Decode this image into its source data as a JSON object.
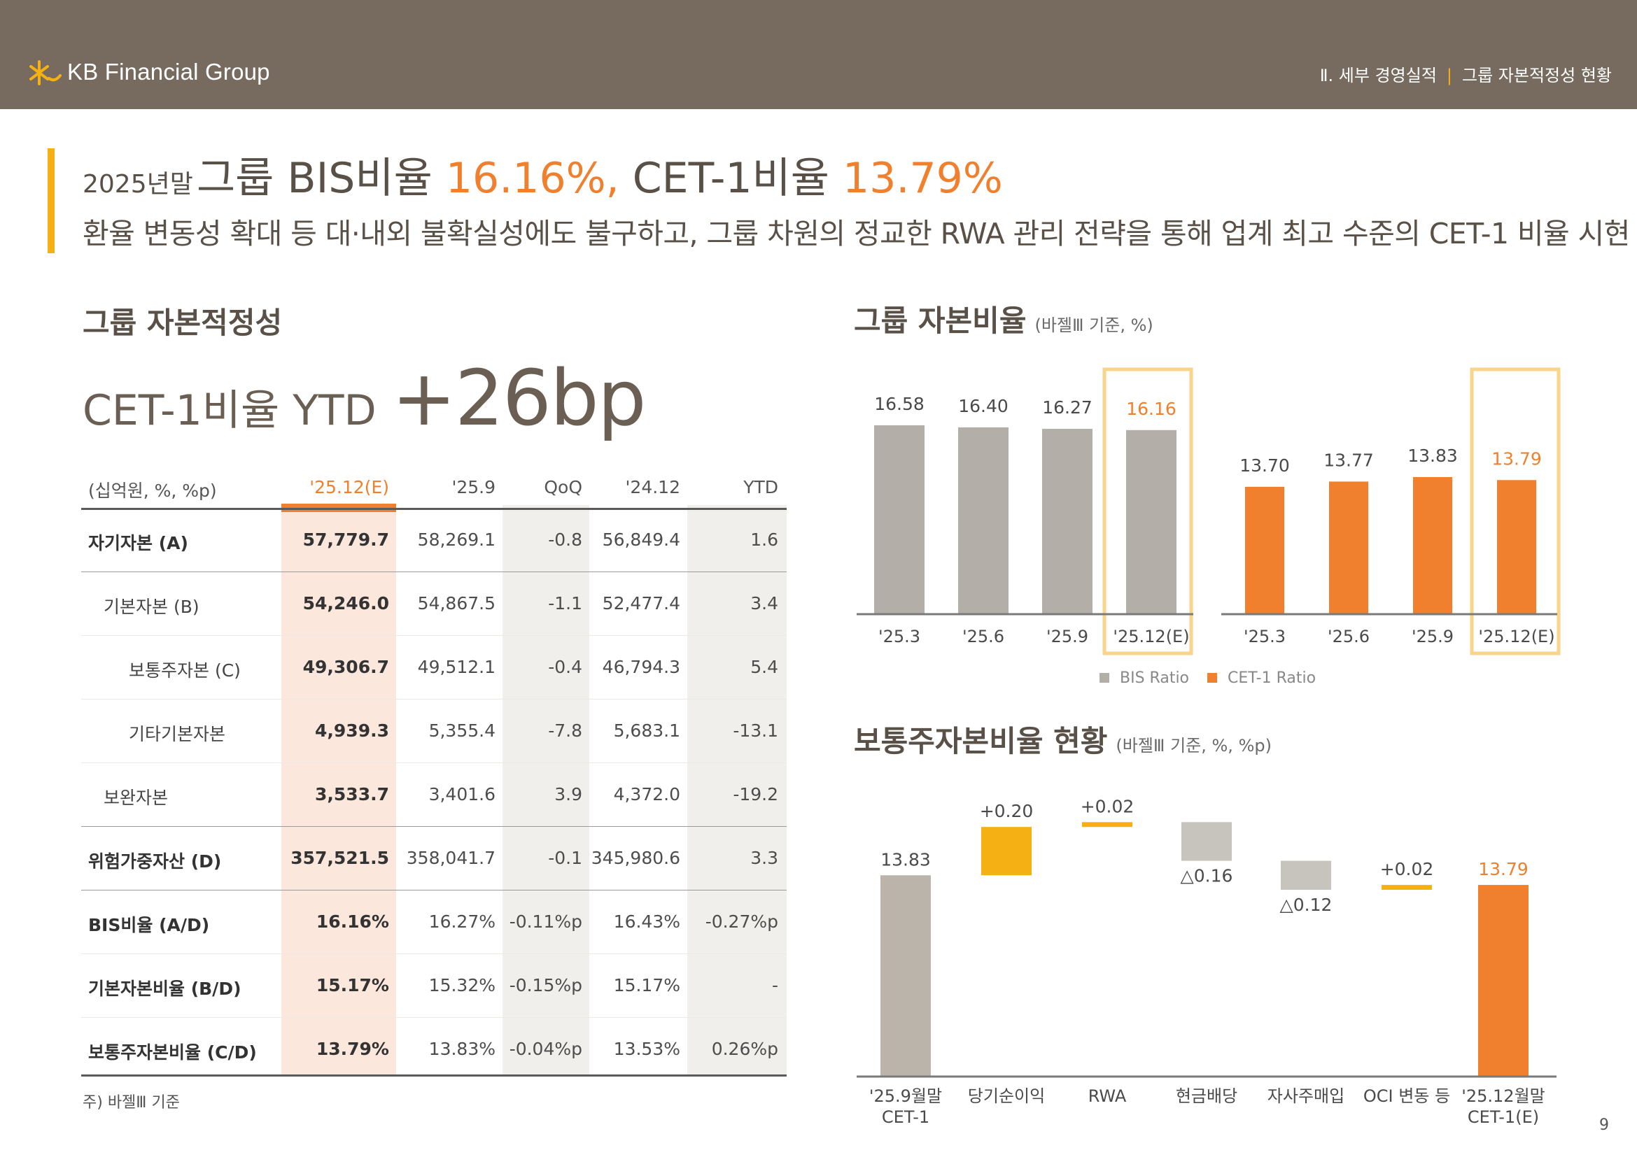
{
  "header": {
    "brand": "KB Financial Group",
    "breadcrumb_section": "Ⅱ. 세부 경영실적",
    "breadcrumb_sep": "|",
    "breadcrumb_page": "그룹 자본적정성 현황"
  },
  "headline": {
    "prefix": "2025년말",
    "part1": "그룹 BIS비율 ",
    "bis": "16.16%,",
    "part2": " CET-1비율 ",
    "cet": "13.79%",
    "subtitle": "환율 변동성 확대 등 대·내외 불확실성에도 불구하고, 그룹 차원의 정교한 RWA 관리 전략을 통해 업계 최고 수준의 CET-1 비율 시현"
  },
  "left": {
    "section_title": "그룹 자본적정성",
    "ytd_label": "CET-1비율 YTD",
    "ytd_value": "+26bp",
    "table": {
      "unit": "(십억원, %, %p)",
      "columns": [
        "'25.12(E)",
        "'25.9",
        "QoQ",
        "'24.12",
        "YTD"
      ],
      "rows": [
        {
          "label": "자기자본 (A)",
          "values": [
            "57,779.7",
            "58,269.1",
            "-0.8",
            "56,849.4",
            "1.6"
          ]
        },
        {
          "label": "기본자본 (B)",
          "values": [
            "54,246.0",
            "54,867.5",
            "-1.1",
            "52,477.4",
            "3.4"
          ]
        },
        {
          "label": "보통주자본 (C)",
          "values": [
            "49,306.7",
            "49,512.1",
            "-0.4",
            "46,794.3",
            "5.4"
          ]
        },
        {
          "label": "기타기본자본",
          "values": [
            "4,939.3",
            "5,355.4",
            "-7.8",
            "5,683.1",
            "-13.1"
          ]
        },
        {
          "label": "보완자본",
          "values": [
            "3,533.7",
            "3,401.6",
            "3.9",
            "4,372.0",
            "-19.2"
          ]
        },
        {
          "label": "위험가중자산 (D)",
          "values": [
            "357,521.5",
            "358,041.7",
            "-0.1",
            "345,980.6",
            "3.3"
          ]
        },
        {
          "label": "BIS비율 (A/D)",
          "values": [
            "16.16%",
            "16.27%",
            "-0.11%p",
            "16.43%",
            "-0.27%p"
          ]
        },
        {
          "label": "기본자본비율 (B/D)",
          "values": [
            "15.17%",
            "15.32%",
            "-0.15%p",
            "15.17%",
            "-"
          ]
        },
        {
          "label": "보통주자본비율 (C/D)",
          "values": [
            "13.79%",
            "13.83%",
            "-0.04%p",
            "13.53%",
            "0.26%p"
          ]
        }
      ]
    },
    "footnote": "주) 바젤Ⅲ 기준"
  },
  "chart_data": [
    {
      "type": "bar",
      "title": "그룹 자본비율",
      "note": "(바젤Ⅲ 기준, %)",
      "categories": [
        "'25.3",
        "'25.6",
        "'25.9",
        "'25.12(E)"
      ],
      "series": [
        {
          "name": "BIS Ratio",
          "color": "#b3aea8",
          "values": [
            16.58,
            16.4,
            16.27,
            16.16
          ]
        },
        {
          "name": "CET-1 Ratio",
          "color": "#f0802e",
          "values": [
            13.7,
            13.77,
            13.83,
            13.79
          ]
        }
      ],
      "labels": {
        "bis": [
          "16.58",
          "16.40",
          "16.27",
          "16.16"
        ],
        "cet": [
          "13.70",
          "13.77",
          "13.83",
          "13.79"
        ]
      },
      "legend": [
        "BIS Ratio",
        "CET-1 Ratio"
      ],
      "highlight_category": "'25.12(E)"
    },
    {
      "type": "waterfall",
      "title": "보통주자본비율 현황",
      "note": "(바젤Ⅲ 기준, %, %p)",
      "ylim": [
        13.0,
        14.1
      ],
      "steps": [
        {
          "label1": "'25.9월말",
          "label2": "CET-1",
          "kind": "total",
          "value": 13.83,
          "text": "13.83"
        },
        {
          "label1": "당기순이익",
          "label2": "",
          "kind": "up",
          "value": 0.2,
          "text": "+0.20"
        },
        {
          "label1": "RWA",
          "label2": "",
          "kind": "up",
          "value": 0.02,
          "text": "+0.02"
        },
        {
          "label1": "현금배당",
          "label2": "",
          "kind": "down",
          "value": -0.16,
          "text": "△0.16"
        },
        {
          "label1": "자사주매입",
          "label2": "",
          "kind": "down",
          "value": -0.12,
          "text": "△0.12"
        },
        {
          "label1": "OCI 변동 등",
          "label2": "",
          "kind": "up",
          "value": 0.02,
          "text": "+0.02"
        },
        {
          "label1": "'25.12월말",
          "label2": "CET-1(E)",
          "kind": "total",
          "value": 13.79,
          "text": "13.79"
        }
      ],
      "colors": {
        "total": "#bab4aa",
        "up": "#f5b014",
        "down": "#c7c3bd",
        "final": "#f0802e"
      }
    }
  ],
  "page_number": "9"
}
